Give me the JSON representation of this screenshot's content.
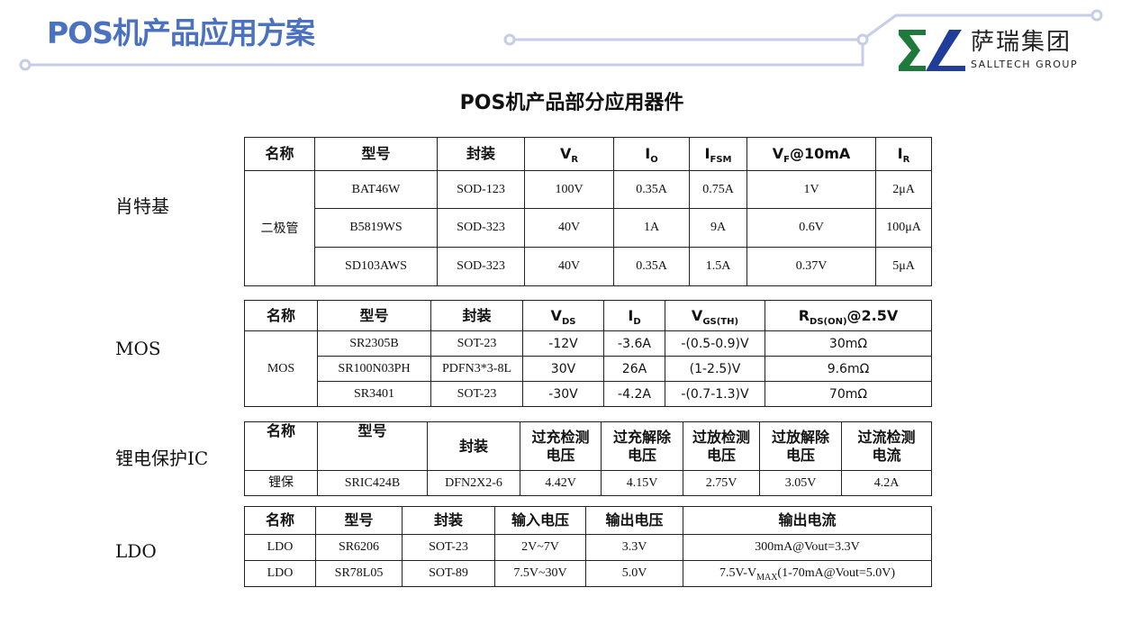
{
  "header": {
    "title": "POS机产品应用方案",
    "brand_cn": "萨瑞集团",
    "brand_en": "SALLTECH GROUP",
    "colors": {
      "accent": "#4a72c0",
      "line": "#c5cde8",
      "logo_green": "#1e7a3a",
      "logo_blue": "#1f3d99"
    }
  },
  "subtitle": "POS机产品部分应用器件",
  "sections": [
    {
      "label": "肖特基",
      "header": [
        [
          "名称"
        ],
        [
          "型号"
        ],
        [
          "封装"
        ],
        [
          "V",
          "R"
        ],
        [
          "I",
          "O"
        ],
        [
          "I",
          "FSM"
        ],
        [
          "V",
          "F",
          "@10mA"
        ],
        [
          "I",
          "R"
        ]
      ],
      "group": "二极管",
      "rows": [
        [
          "BAT46W",
          "SOD-123",
          "100V",
          "0.35A",
          "0.75A",
          "1V",
          "2μA"
        ],
        [
          "B5819WS",
          "SOD-323",
          "40V",
          "1A",
          "9A",
          "0.6V",
          "100μA"
        ],
        [
          "SD103AWS",
          "SOD-323",
          "40V",
          "0.35A",
          "1.5A",
          "0.37V",
          "5μA"
        ]
      ]
    },
    {
      "label": "MOS",
      "header": [
        [
          "名称"
        ],
        [
          "型号"
        ],
        [
          "封装"
        ],
        [
          "V",
          "DS"
        ],
        [
          "I",
          "D"
        ],
        [
          "V",
          "GS(TH)"
        ],
        [
          "R",
          "DS(ON)",
          "@2.5V"
        ]
      ],
      "group": "MOS",
      "rows": [
        [
          "SR2305B",
          "SOT-23",
          "-12V",
          "-3.6A",
          "-(0.5-0.9)V",
          "30mΩ"
        ],
        [
          "SR100N03PH",
          "PDFN3*3-8L",
          "30V",
          "26A",
          "(1-2.5)V",
          "9.6mΩ"
        ],
        [
          "SR3401",
          "SOT-23",
          "-30V",
          "-4.2A",
          "-(0.7-1.3)V",
          "70mΩ"
        ]
      ]
    },
    {
      "label": "锂电保护IC",
      "header": [
        [
          "名称"
        ],
        [
          "型号"
        ],
        [
          "封装"
        ],
        [
          "过充检测电压"
        ],
        [
          "过充解除电压"
        ],
        [
          "过放检测电压"
        ],
        [
          "过放解除电压"
        ],
        [
          "过流检测电流"
        ]
      ],
      "rows": [
        [
          "锂保",
          "SRIC424B",
          "DFN2X2-6",
          "4.42V",
          "4.15V",
          "2.75V",
          "3.05V",
          "4.2A"
        ]
      ]
    },
    {
      "label": "LDO",
      "header": [
        [
          "名称"
        ],
        [
          "型号"
        ],
        [
          "封装"
        ],
        [
          "输入电压"
        ],
        [
          "输出电压"
        ],
        [
          "输出电流"
        ]
      ],
      "rows": [
        [
          "LDO",
          "SR6206",
          "SOT-23",
          "2V~7V",
          "3.3V",
          "300mA@Vout=3.3V"
        ],
        [
          "LDO",
          "SR78L05",
          "SOT-89",
          "7.5V~30V",
          "5.0V",
          [
            "7.5V-V",
            "MAX",
            "(1-70mA@Vout=5.0V)"
          ]
        ]
      ]
    }
  ]
}
